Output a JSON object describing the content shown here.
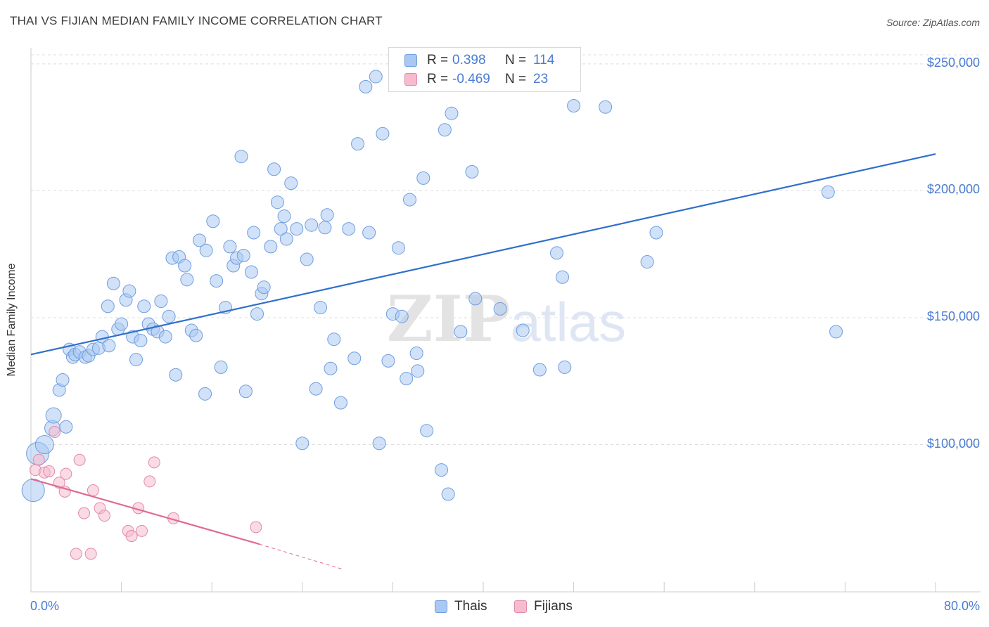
{
  "title": "THAI VS FIJIAN MEDIAN FAMILY INCOME CORRELATION CHART",
  "source": "Source: ZipAtlas.com",
  "colors": {
    "thais_fill": "#a9c8f2",
    "thais_stroke": "#6f9ede",
    "thais_line": "#2f6fcc",
    "fijians_fill": "#f6bccd",
    "fijians_stroke": "#e08aa8",
    "fijians_line": "#e06a96",
    "tick_text": "#4a7cd4",
    "grid": "#dddddd"
  },
  "legend": {
    "rows": [
      {
        "r_label": "R =",
        "r_value": "0.398",
        "n_label": "N =",
        "n_value": "114"
      },
      {
        "r_label": "R =",
        "r_value": "-0.469",
        "n_label": "N =",
        "n_value": "23"
      }
    ]
  },
  "bottom_legend": [
    "Thais",
    "Fijians"
  ],
  "chart_data": {
    "type": "scatter",
    "title": "THAI VS FIJIAN MEDIAN FAMILY INCOME CORRELATION CHART",
    "xlabel": "",
    "ylabel": "Median Family Income",
    "xlim": [
      0,
      80
    ],
    "ylim": [
      42000,
      258000
    ],
    "x_tick_labels": [
      "0.0%",
      "80.0%"
    ],
    "y_ticks": [
      100000,
      150000,
      200000,
      250000
    ],
    "y_tick_labels": [
      "$100,000",
      "$150,000",
      "$200,000",
      "$250,000"
    ],
    "grid": true,
    "legend_position": "top-center",
    "series": [
      {
        "name": "Thais",
        "trend": {
          "x": [
            0,
            80
          ],
          "y": [
            135500,
            214500
          ]
        },
        "points": [
          [
            0.2,
            82000
          ],
          [
            0.6,
            96500
          ],
          [
            1.2,
            100000
          ],
          [
            1.9,
            106500
          ],
          [
            2.0,
            111500
          ],
          [
            3.1,
            107000
          ],
          [
            2.5,
            121500
          ],
          [
            2.8,
            125500
          ],
          [
            3.4,
            137500
          ],
          [
            3.7,
            134500
          ],
          [
            3.9,
            135500
          ],
          [
            4.3,
            136500
          ],
          [
            4.8,
            134500
          ],
          [
            5.1,
            135000
          ],
          [
            5.5,
            137500
          ],
          [
            6.0,
            138000
          ],
          [
            6.3,
            142500
          ],
          [
            6.9,
            139000
          ],
          [
            6.8,
            154500
          ],
          [
            7.3,
            163500
          ],
          [
            7.7,
            145500
          ],
          [
            8.0,
            147500
          ],
          [
            8.4,
            157000
          ],
          [
            8.7,
            160500
          ],
          [
            9.0,
            142500
          ],
          [
            9.3,
            133500
          ],
          [
            9.7,
            141000
          ],
          [
            10.0,
            154500
          ],
          [
            10.4,
            147500
          ],
          [
            10.8,
            145500
          ],
          [
            11.2,
            144500
          ],
          [
            11.5,
            156500
          ],
          [
            11.9,
            142500
          ],
          [
            12.2,
            150500
          ],
          [
            12.5,
            173500
          ],
          [
            12.8,
            127500
          ],
          [
            13.1,
            174000
          ],
          [
            13.6,
            170500
          ],
          [
            13.8,
            165000
          ],
          [
            14.2,
            145000
          ],
          [
            14.6,
            143000
          ],
          [
            14.9,
            180500
          ],
          [
            15.5,
            176500
          ],
          [
            15.4,
            120000
          ],
          [
            16.1,
            188000
          ],
          [
            16.4,
            164500
          ],
          [
            16.8,
            130500
          ],
          [
            17.2,
            154000
          ],
          [
            17.6,
            178000
          ],
          [
            17.9,
            170500
          ],
          [
            18.2,
            173500
          ],
          [
            18.8,
            174500
          ],
          [
            18.6,
            213500
          ],
          [
            19.0,
            121000
          ],
          [
            19.5,
            168000
          ],
          [
            19.7,
            183500
          ],
          [
            20.0,
            151500
          ],
          [
            20.4,
            159500
          ],
          [
            20.6,
            162000
          ],
          [
            21.2,
            178000
          ],
          [
            21.5,
            208500
          ],
          [
            21.8,
            195500
          ],
          [
            22.1,
            185000
          ],
          [
            22.4,
            190000
          ],
          [
            22.6,
            181000
          ],
          [
            23.0,
            203000
          ],
          [
            23.5,
            185000
          ],
          [
            24.0,
            100500
          ],
          [
            24.4,
            173000
          ],
          [
            24.8,
            186500
          ],
          [
            25.2,
            122000
          ],
          [
            25.6,
            154000
          ],
          [
            26.0,
            185500
          ],
          [
            26.2,
            190500
          ],
          [
            26.8,
            141500
          ],
          [
            26.5,
            130000
          ],
          [
            27.4,
            116500
          ],
          [
            28.1,
            185000
          ],
          [
            28.6,
            134000
          ],
          [
            28.9,
            218500
          ],
          [
            29.6,
            241000
          ],
          [
            29.9,
            183500
          ],
          [
            30.5,
            245000
          ],
          [
            30.8,
            100500
          ],
          [
            31.1,
            222500
          ],
          [
            31.6,
            133000
          ],
          [
            32.0,
            151500
          ],
          [
            32.5,
            177500
          ],
          [
            32.8,
            150500
          ],
          [
            33.2,
            126000
          ],
          [
            33.5,
            196500
          ],
          [
            34.1,
            136000
          ],
          [
            34.2,
            129000
          ],
          [
            34.7,
            205000
          ],
          [
            35.0,
            105500
          ],
          [
            36.3,
            90000
          ],
          [
            36.6,
            224000
          ],
          [
            36.9,
            80500
          ],
          [
            37.2,
            230500
          ],
          [
            38.0,
            144500
          ],
          [
            39.0,
            207500
          ],
          [
            39.3,
            157500
          ],
          [
            41.5,
            153500
          ],
          [
            43.5,
            145000
          ],
          [
            45.0,
            129500
          ],
          [
            46.5,
            175500
          ],
          [
            47.0,
            166000
          ],
          [
            47.2,
            130500
          ],
          [
            48.0,
            233500
          ],
          [
            50.8,
            233000
          ],
          [
            54.5,
            172000
          ],
          [
            55.3,
            183500
          ],
          [
            70.5,
            199500
          ],
          [
            71.2,
            144500
          ]
        ]
      },
      {
        "name": "Fijians",
        "trend": {
          "x": [
            0,
            20.2
          ],
          "y": [
            86500,
            60800
          ]
        },
        "trend_dashed": {
          "x": [
            20.2,
            27.5
          ],
          "y": [
            60800,
            51000
          ]
        },
        "points": [
          [
            0.4,
            90000
          ],
          [
            0.7,
            94000
          ],
          [
            1.2,
            89000
          ],
          [
            1.6,
            89500
          ],
          [
            2.1,
            105000
          ],
          [
            2.5,
            85000
          ],
          [
            3.0,
            81500
          ],
          [
            3.1,
            88500
          ],
          [
            4.3,
            94000
          ],
          [
            4.0,
            57000
          ],
          [
            4.7,
            73000
          ],
          [
            5.3,
            57000
          ],
          [
            5.5,
            82000
          ],
          [
            6.1,
            75000
          ],
          [
            6.5,
            72000
          ],
          [
            8.6,
            66000
          ],
          [
            8.9,
            64000
          ],
          [
            9.5,
            75000
          ],
          [
            9.8,
            66000
          ],
          [
            10.5,
            85500
          ],
          [
            10.9,
            93000
          ],
          [
            12.6,
            71000
          ],
          [
            19.9,
            67500
          ]
        ]
      }
    ]
  }
}
